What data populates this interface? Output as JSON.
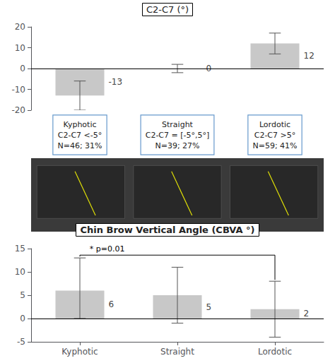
{
  "chart_data": [
    {
      "type": "bar",
      "title": "C2-C7 (°)",
      "categories": [
        "Kyphotic",
        "Straight",
        "Lordotic"
      ],
      "values": [
        -13,
        0,
        12
      ],
      "errors_low": [
        7,
        2,
        5
      ],
      "errors_high": [
        7,
        2,
        5
      ],
      "color": "#c8c8c8",
      "ylim": [
        -20,
        20
      ],
      "yticks": [
        -20,
        -10,
        0,
        10,
        20
      ],
      "grid": false,
      "data_labels": true,
      "tick_labels": "y",
      "annotations": [
        "Kyphotic\nC2-C7 <-5°\nN=46; 31%",
        "Straight\nC2-C7 = [-5°,5°]\nN=39; 27%",
        "Lordotic\nC2-C7 >5°\nN=59; 41%"
      ]
    },
    {
      "type": "bar",
      "title": "Chin Brow Vertical Angle (CBVA °)",
      "categories": [
        "Kyphotic",
        "Straight",
        "Lordotic"
      ],
      "values": [
        6,
        5,
        2
      ],
      "errors_low": [
        6,
        6,
        6
      ],
      "errors_high": [
        7,
        6,
        6
      ],
      "color": "#c8c8c8",
      "ylim": [
        -5,
        15
      ],
      "yticks": [
        -5,
        0,
        5,
        10,
        15
      ],
      "grid": false,
      "data_labels": true,
      "annotations": [
        {
          "text": "* p=0.01",
          "categories": [
            "Kyphotic",
            "Lordotic"
          ]
        }
      ]
    }
  ]
}
